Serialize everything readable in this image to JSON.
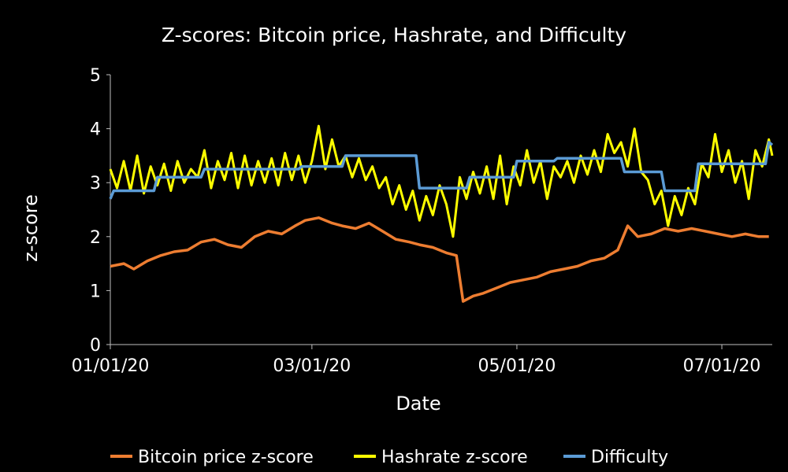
{
  "chart_data": {
    "type": "line",
    "title": "Z-scores: Bitcoin price, Hashrate, and Difficulty",
    "xlabel": "Date",
    "ylabel": "z-score",
    "ylim": [
      0,
      5
    ],
    "yticks": [
      "0",
      "1",
      "2",
      "3",
      "4",
      "5"
    ],
    "xlim": [
      "2020-01-01",
      "2020-07-16"
    ],
    "xticks": [
      {
        "date": "2020-01-01",
        "label": "01/01/20"
      },
      {
        "date": "2020-03-01",
        "label": "03/01/20"
      },
      {
        "date": "2020-05-01",
        "label": "05/01/20"
      },
      {
        "date": "2020-07-01",
        "label": "07/01/20"
      }
    ],
    "grid": false,
    "legend_position": "bottom",
    "series": [
      {
        "name": "Bitcoin price z-score",
        "color": "#ED7D31",
        "points": [
          [
            "2020-01-01",
            1.45
          ],
          [
            "2020-01-05",
            1.5
          ],
          [
            "2020-01-08",
            1.4
          ],
          [
            "2020-01-12",
            1.55
          ],
          [
            "2020-01-16",
            1.65
          ],
          [
            "2020-01-20",
            1.72
          ],
          [
            "2020-01-24",
            1.75
          ],
          [
            "2020-01-28",
            1.9
          ],
          [
            "2020-02-01",
            1.95
          ],
          [
            "2020-02-05",
            1.85
          ],
          [
            "2020-02-09",
            1.8
          ],
          [
            "2020-02-13",
            2.0
          ],
          [
            "2020-02-17",
            2.1
          ],
          [
            "2020-02-21",
            2.05
          ],
          [
            "2020-02-25",
            2.2
          ],
          [
            "2020-02-28",
            2.3
          ],
          [
            "2020-03-03",
            2.35
          ],
          [
            "2020-03-07",
            2.25
          ],
          [
            "2020-03-10",
            2.2
          ],
          [
            "2020-03-14",
            2.15
          ],
          [
            "2020-03-18",
            2.25
          ],
          [
            "2020-03-22",
            2.1
          ],
          [
            "2020-03-26",
            1.95
          ],
          [
            "2020-03-30",
            1.9
          ],
          [
            "2020-04-02",
            1.85
          ],
          [
            "2020-04-06",
            1.8
          ],
          [
            "2020-04-10",
            1.7
          ],
          [
            "2020-04-13",
            1.65
          ],
          [
            "2020-04-15",
            0.8
          ],
          [
            "2020-04-18",
            0.9
          ],
          [
            "2020-04-21",
            0.95
          ],
          [
            "2020-04-25",
            1.05
          ],
          [
            "2020-04-29",
            1.15
          ],
          [
            "2020-05-03",
            1.2
          ],
          [
            "2020-05-07",
            1.25
          ],
          [
            "2020-05-11",
            1.35
          ],
          [
            "2020-05-15",
            1.4
          ],
          [
            "2020-05-19",
            1.45
          ],
          [
            "2020-05-23",
            1.55
          ],
          [
            "2020-05-27",
            1.6
          ],
          [
            "2020-05-31",
            1.75
          ],
          [
            "2020-06-03",
            2.2
          ],
          [
            "2020-06-06",
            2.0
          ],
          [
            "2020-06-10",
            2.05
          ],
          [
            "2020-06-14",
            2.15
          ],
          [
            "2020-06-18",
            2.1
          ],
          [
            "2020-06-22",
            2.15
          ],
          [
            "2020-06-26",
            2.1
          ],
          [
            "2020-06-30",
            2.05
          ],
          [
            "2020-07-04",
            2.0
          ],
          [
            "2020-07-08",
            2.05
          ],
          [
            "2020-07-12",
            2.0
          ],
          [
            "2020-07-15",
            2.0
          ]
        ]
      },
      {
        "name": "Hashrate z-score",
        "color": "#FFFF00",
        "points": [
          [
            "2020-01-01",
            3.25
          ],
          [
            "2020-01-03",
            2.9
          ],
          [
            "2020-01-05",
            3.4
          ],
          [
            "2020-01-07",
            2.85
          ],
          [
            "2020-01-09",
            3.5
          ],
          [
            "2020-01-11",
            2.8
          ],
          [
            "2020-01-13",
            3.3
          ],
          [
            "2020-01-15",
            2.95
          ],
          [
            "2020-01-17",
            3.35
          ],
          [
            "2020-01-19",
            2.85
          ],
          [
            "2020-01-21",
            3.4
          ],
          [
            "2020-01-23",
            3.0
          ],
          [
            "2020-01-25",
            3.25
          ],
          [
            "2020-01-27",
            3.1
          ],
          [
            "2020-01-29",
            3.6
          ],
          [
            "2020-01-31",
            2.9
          ],
          [
            "2020-02-02",
            3.4
          ],
          [
            "2020-02-04",
            3.05
          ],
          [
            "2020-02-06",
            3.55
          ],
          [
            "2020-02-08",
            2.9
          ],
          [
            "2020-02-10",
            3.5
          ],
          [
            "2020-02-12",
            2.95
          ],
          [
            "2020-02-14",
            3.4
          ],
          [
            "2020-02-16",
            3.0
          ],
          [
            "2020-02-18",
            3.45
          ],
          [
            "2020-02-20",
            2.95
          ],
          [
            "2020-02-22",
            3.55
          ],
          [
            "2020-02-24",
            3.05
          ],
          [
            "2020-02-26",
            3.5
          ],
          [
            "2020-02-28",
            3.0
          ],
          [
            "2020-03-01",
            3.4
          ],
          [
            "2020-03-03",
            4.05
          ],
          [
            "2020-03-05",
            3.25
          ],
          [
            "2020-03-07",
            3.8
          ],
          [
            "2020-03-09",
            3.3
          ],
          [
            "2020-03-11",
            3.5
          ],
          [
            "2020-03-13",
            3.1
          ],
          [
            "2020-03-15",
            3.45
          ],
          [
            "2020-03-17",
            3.05
          ],
          [
            "2020-03-19",
            3.3
          ],
          [
            "2020-03-21",
            2.9
          ],
          [
            "2020-03-23",
            3.1
          ],
          [
            "2020-03-25",
            2.6
          ],
          [
            "2020-03-27",
            2.95
          ],
          [
            "2020-03-29",
            2.5
          ],
          [
            "2020-03-31",
            2.85
          ],
          [
            "2020-04-02",
            2.3
          ],
          [
            "2020-04-04",
            2.75
          ],
          [
            "2020-04-06",
            2.4
          ],
          [
            "2020-04-08",
            2.95
          ],
          [
            "2020-04-10",
            2.6
          ],
          [
            "2020-04-12",
            2.0
          ],
          [
            "2020-04-14",
            3.1
          ],
          [
            "2020-04-16",
            2.7
          ],
          [
            "2020-04-18",
            3.2
          ],
          [
            "2020-04-20",
            2.8
          ],
          [
            "2020-04-22",
            3.3
          ],
          [
            "2020-04-24",
            2.7
          ],
          [
            "2020-04-26",
            3.5
          ],
          [
            "2020-04-28",
            2.6
          ],
          [
            "2020-04-30",
            3.3
          ],
          [
            "2020-05-02",
            2.95
          ],
          [
            "2020-05-04",
            3.6
          ],
          [
            "2020-05-06",
            3.0
          ],
          [
            "2020-05-08",
            3.4
          ],
          [
            "2020-05-10",
            2.7
          ],
          [
            "2020-05-12",
            3.3
          ],
          [
            "2020-05-14",
            3.1
          ],
          [
            "2020-05-16",
            3.4
          ],
          [
            "2020-05-18",
            3.0
          ],
          [
            "2020-05-20",
            3.5
          ],
          [
            "2020-05-22",
            3.15
          ],
          [
            "2020-05-24",
            3.6
          ],
          [
            "2020-05-26",
            3.2
          ],
          [
            "2020-05-28",
            3.9
          ],
          [
            "2020-05-30",
            3.55
          ],
          [
            "2020-06-01",
            3.75
          ],
          [
            "2020-06-03",
            3.3
          ],
          [
            "2020-06-05",
            4.0
          ],
          [
            "2020-06-07",
            3.2
          ],
          [
            "2020-06-09",
            3.05
          ],
          [
            "2020-06-11",
            2.6
          ],
          [
            "2020-06-13",
            2.85
          ],
          [
            "2020-06-15",
            2.2
          ],
          [
            "2020-06-17",
            2.75
          ],
          [
            "2020-06-19",
            2.4
          ],
          [
            "2020-06-21",
            2.9
          ],
          [
            "2020-06-23",
            2.6
          ],
          [
            "2020-06-25",
            3.35
          ],
          [
            "2020-06-27",
            3.1
          ],
          [
            "2020-06-29",
            3.9
          ],
          [
            "2020-07-01",
            3.2
          ],
          [
            "2020-07-03",
            3.6
          ],
          [
            "2020-07-05",
            3.0
          ],
          [
            "2020-07-07",
            3.4
          ],
          [
            "2020-07-09",
            2.7
          ],
          [
            "2020-07-11",
            3.6
          ],
          [
            "2020-07-13",
            3.3
          ],
          [
            "2020-07-15",
            3.8
          ],
          [
            "2020-07-16",
            3.5
          ]
        ]
      },
      {
        "name": "Difficulty",
        "color": "#5B9BD5",
        "points": [
          [
            "2020-01-01",
            2.7
          ],
          [
            "2020-01-02",
            2.85
          ],
          [
            "2020-01-14",
            2.85
          ],
          [
            "2020-01-15",
            3.1
          ],
          [
            "2020-01-28",
            3.1
          ],
          [
            "2020-01-29",
            3.25
          ],
          [
            "2020-02-26",
            3.25
          ],
          [
            "2020-02-27",
            3.3
          ],
          [
            "2020-03-10",
            3.3
          ],
          [
            "2020-03-11",
            3.5
          ],
          [
            "2020-04-01",
            3.5
          ],
          [
            "2020-04-02",
            2.9
          ],
          [
            "2020-04-16",
            2.9
          ],
          [
            "2020-04-17",
            3.1
          ],
          [
            "2020-04-30",
            3.1
          ],
          [
            "2020-05-01",
            3.4
          ],
          [
            "2020-05-12",
            3.4
          ],
          [
            "2020-05-13",
            3.45
          ],
          [
            "2020-06-01",
            3.45
          ],
          [
            "2020-06-02",
            3.2
          ],
          [
            "2020-06-13",
            3.2
          ],
          [
            "2020-06-14",
            2.85
          ],
          [
            "2020-06-23",
            2.85
          ],
          [
            "2020-06-24",
            3.35
          ],
          [
            "2020-07-14",
            3.35
          ],
          [
            "2020-07-15",
            3.75
          ],
          [
            "2020-07-16",
            3.7
          ]
        ]
      }
    ]
  }
}
